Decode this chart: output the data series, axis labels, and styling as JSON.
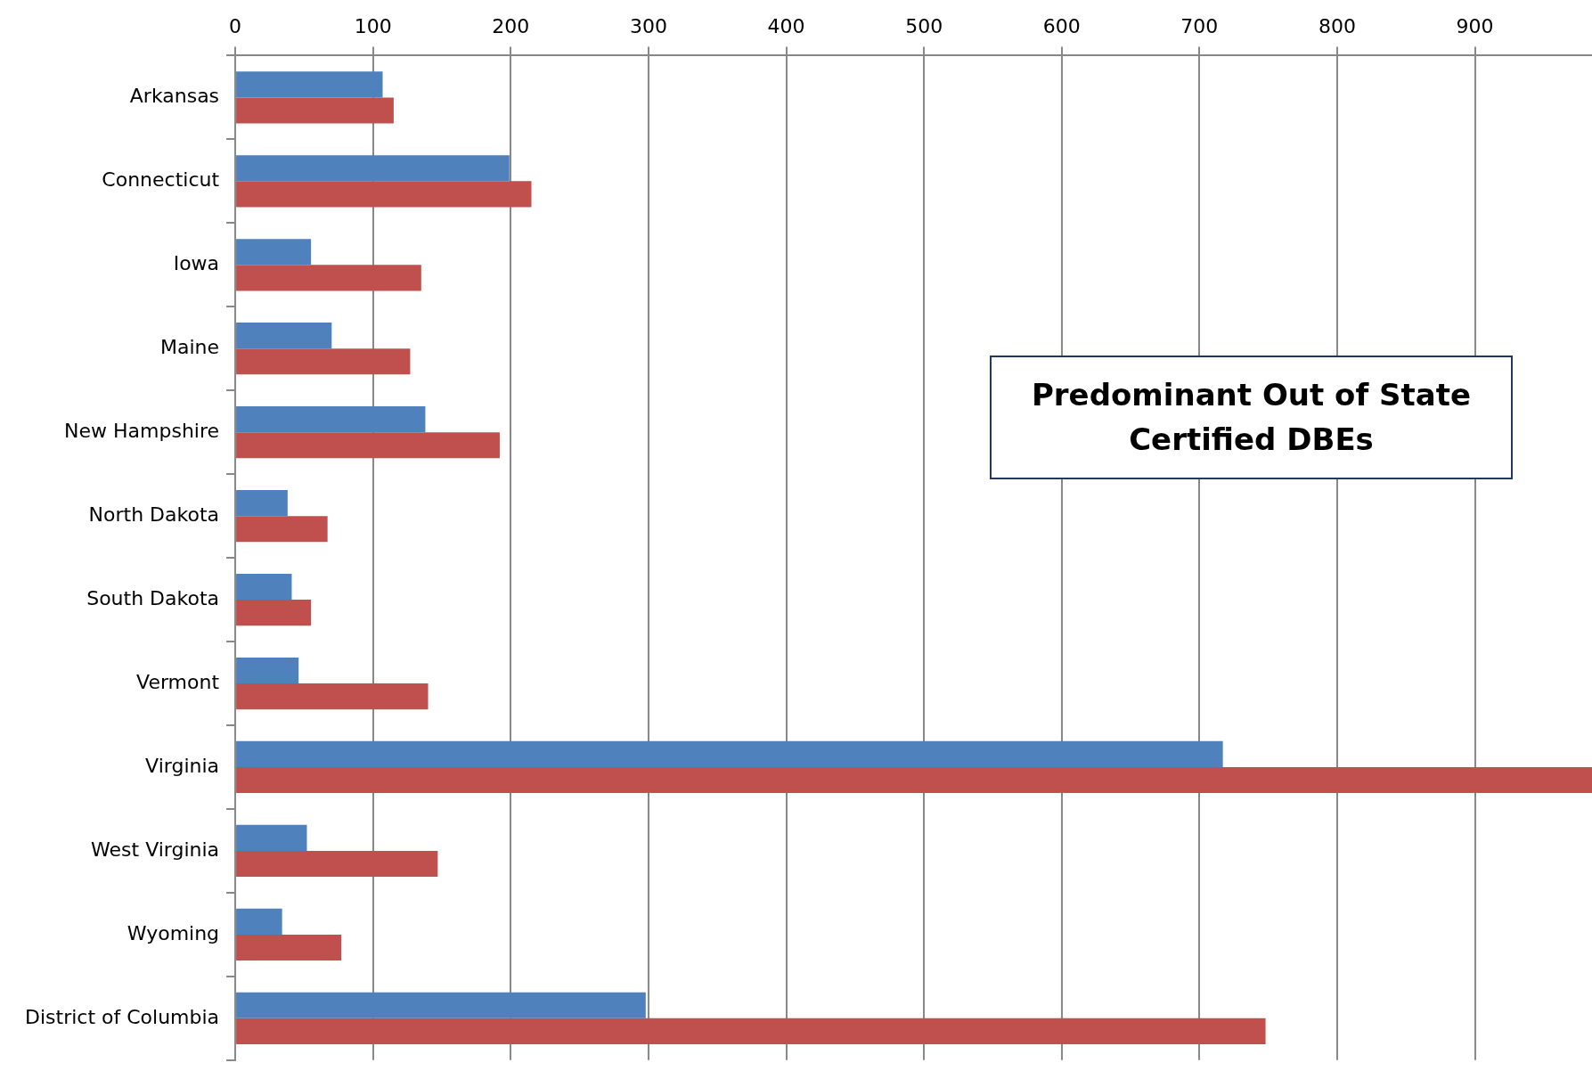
{
  "chart_data": {
    "type": "bar",
    "orientation": "horizontal",
    "title": "Predominant Out of State Certified DBEs",
    "categories": [
      "Arkansas",
      "Connecticut",
      "Iowa",
      "Maine",
      "New Hampshire",
      "North Dakota",
      "South Dakota",
      "Vermont",
      "Virginia",
      "West Virginia",
      "Wyoming",
      "District of Columbia"
    ],
    "series": [
      {
        "color": "#4f81bd",
        "values": [
          107,
          199,
          55,
          70,
          138,
          38,
          41,
          46,
          717,
          52,
          34,
          298
        ]
      },
      {
        "color": "#c0504d",
        "values": [
          115,
          215,
          135,
          127,
          192,
          67,
          55,
          140,
          985,
          147,
          77,
          748
        ]
      }
    ],
    "xlim": [
      0,
      985
    ],
    "xticks": [
      0,
      100,
      200,
      300,
      400,
      500,
      600,
      700,
      800,
      900
    ],
    "grid": "x",
    "legend": false
  }
}
